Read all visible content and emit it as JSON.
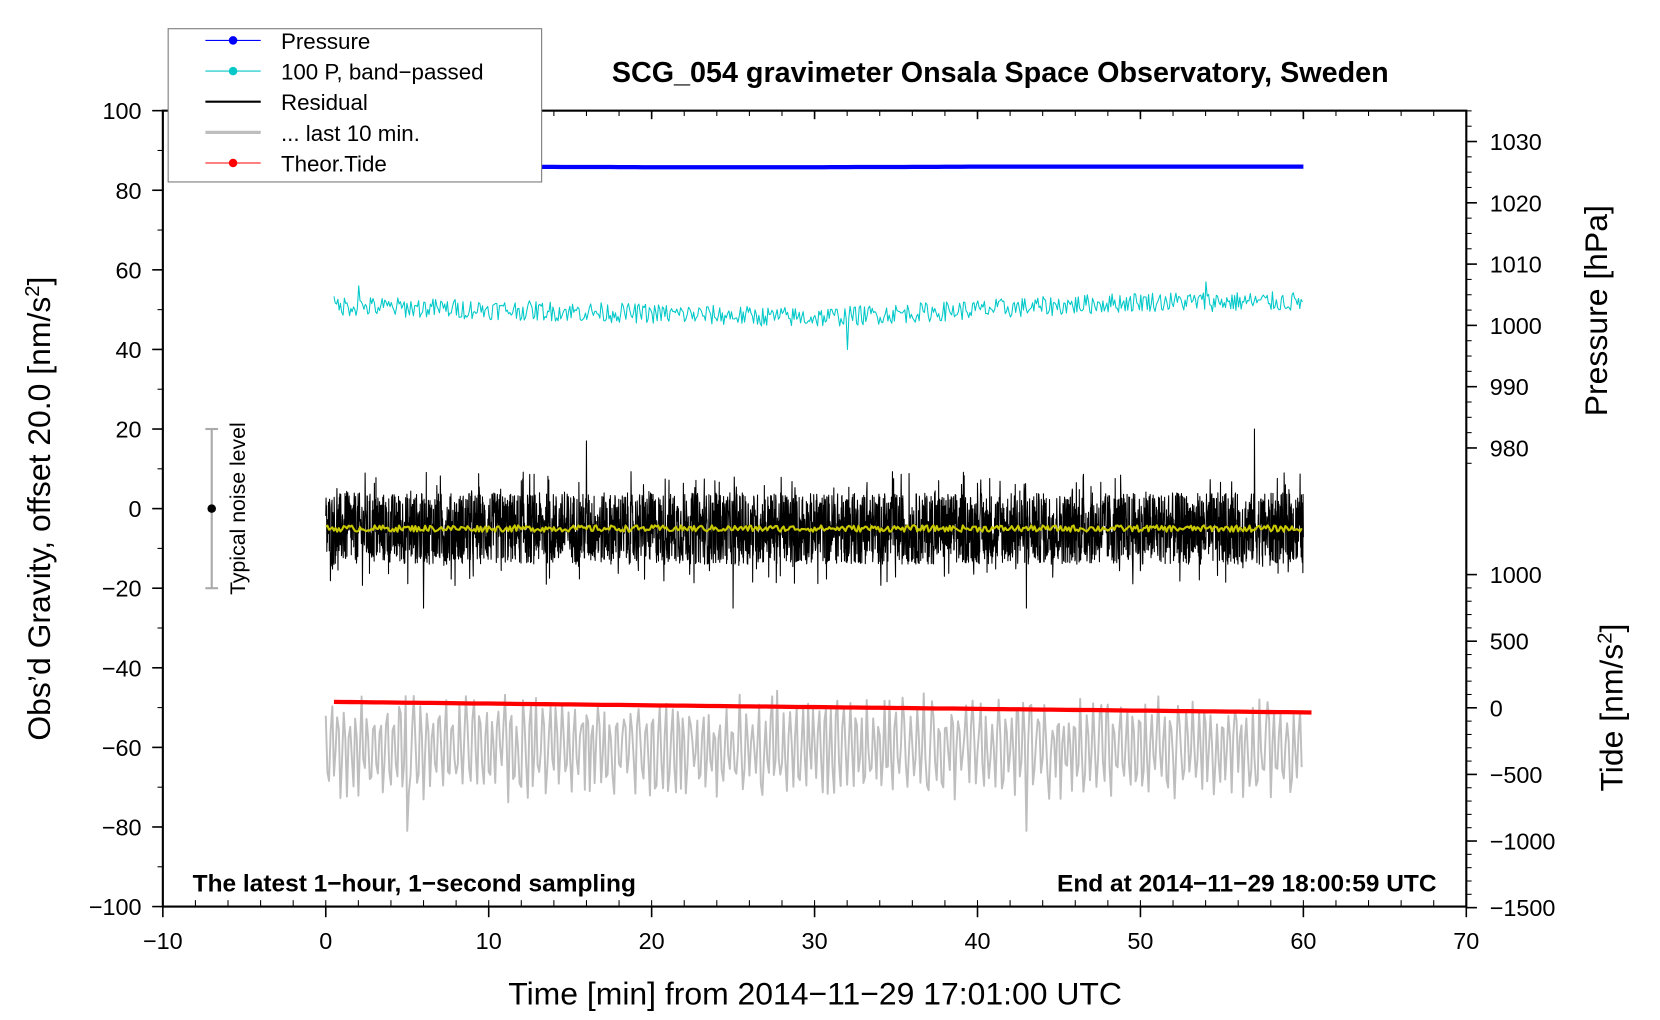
{
  "chart_data": {
    "type": "line",
    "title": "SCG_054 gravimeter Onsala Space Observatory, Sweden",
    "xlabel": "Time [min] from 2014−11−29 17:01:00 UTC",
    "ylabel_left": "Obs’d Gravity, offset 20.0 [nm/s",
    "ylabel_left_sup": "2",
    "ylabel_left_end": "]",
    "ylabel_right_pressure": "Pressure [hPa]",
    "ylabel_right_tide": "Tide [nm/s",
    "ylabel_right_tide_sup": "2",
    "ylabel_right_tide_end": "]",
    "xlim": [
      -10,
      70
    ],
    "ylim": [
      -100,
      100
    ],
    "pressure_lim_visible": [
      980,
      1030
    ],
    "tide_lim": [
      -1500,
      1000
    ],
    "x_ticks": [
      "−10",
      "0",
      "10",
      "20",
      "30",
      "40",
      "50",
      "60",
      "70"
    ],
    "x_tick_values": [
      -10,
      0,
      10,
      20,
      30,
      40,
      50,
      60,
      70
    ],
    "y_ticks": [
      "100",
      "80",
      "60",
      "40",
      "20",
      "0",
      "−20",
      "−40",
      "−60",
      "−80",
      "−100"
    ],
    "y_tick_values": [
      100,
      80,
      60,
      40,
      20,
      0,
      -20,
      -40,
      -60,
      -80,
      -100
    ],
    "pressure_ticks": [
      "1030",
      "1020",
      "1010",
      "1000",
      "990",
      "980"
    ],
    "pressure_tick_values": [
      1030,
      1020,
      1010,
      1000,
      990,
      980
    ],
    "tide_ticks": [
      "1000",
      "500",
      "0",
      "−500",
      "−1000",
      "−1500"
    ],
    "tide_tick_values": [
      1000,
      500,
      0,
      -500,
      -1000,
      -1500
    ],
    "annotation_left": "The latest 1−hour, 1−second sampling",
    "annotation_right": "End at 2014−11−29 18:00:59 UTC",
    "noise_label": "Typical noise level",
    "noise_bar": {
      "x": -7,
      "center": 0,
      "half_range": 20
    },
    "legend": {
      "placement": "top-left",
      "items": [
        {
          "label": "Pressure",
          "color": "#0000ff",
          "marker": true
        },
        {
          "label": "100 P, band−passed",
          "color": "#00c8c8",
          "marker": true
        },
        {
          "label": "Residual",
          "color": "#000000",
          "marker": false
        },
        {
          "label": "... last 10 min.",
          "color": "#bebebe",
          "marker": false
        },
        {
          "label": "Theor.Tide",
          "color": "#ff0000",
          "marker": true
        }
      ]
    },
    "series": [
      {
        "name": "Pressure",
        "axis": "pressure_hPa",
        "color": "#0000ff",
        "x": [
          0,
          10,
          20,
          30,
          40,
          50,
          60
        ],
        "values": [
          1025.9,
          1025.9,
          1025.8,
          1025.8,
          1025.9,
          1025.9,
          1025.9
        ]
      },
      {
        "name": "100 P, band-passed",
        "axis": "gravity",
        "color": "#00c8c8",
        "mean": [
          51,
          50,
          49,
          48,
          50,
          52,
          52
        ],
        "mean_x": [
          0,
          10,
          20,
          30,
          40,
          50,
          60
        ],
        "noise_amplitude": 2.5,
        "extremes": [
          {
            "x": 2,
            "y": 42
          },
          {
            "x": 2,
            "y": 56
          },
          {
            "x": 32,
            "y": 40
          },
          {
            "x": 54,
            "y": 57
          }
        ]
      },
      {
        "name": "Residual",
        "axis": "gravity",
        "color": "#000000",
        "mean": -5,
        "noise_amplitude": 9,
        "extremes": [
          {
            "x": 57,
            "y": 20
          },
          {
            "x": 16,
            "y": 17
          },
          {
            "x": 6,
            "y": -25
          },
          {
            "x": 25,
            "y": -25
          },
          {
            "x": 43,
            "y": -25
          }
        ]
      },
      {
        "name": "Residual smoothed",
        "axis": "gravity",
        "color": "#c8c800",
        "mean": -5,
        "noise_amplitude": 0.8
      },
      {
        "name": "... last 10 min.",
        "axis": "gravity",
        "color": "#bebebe",
        "mean": -60,
        "noise_amplitude": 11,
        "extremes": [
          {
            "x": 43,
            "y": -37
          },
          {
            "x": 43,
            "y": -81
          },
          {
            "x": 5,
            "y": -81
          },
          {
            "x": 60,
            "y": -44
          }
        ]
      },
      {
        "name": "Theor.Tide",
        "axis": "tide_nm_s2",
        "color": "#ff0000",
        "x": [
          0,
          60.5
        ],
        "values": [
          45,
          -35
        ]
      }
    ]
  }
}
